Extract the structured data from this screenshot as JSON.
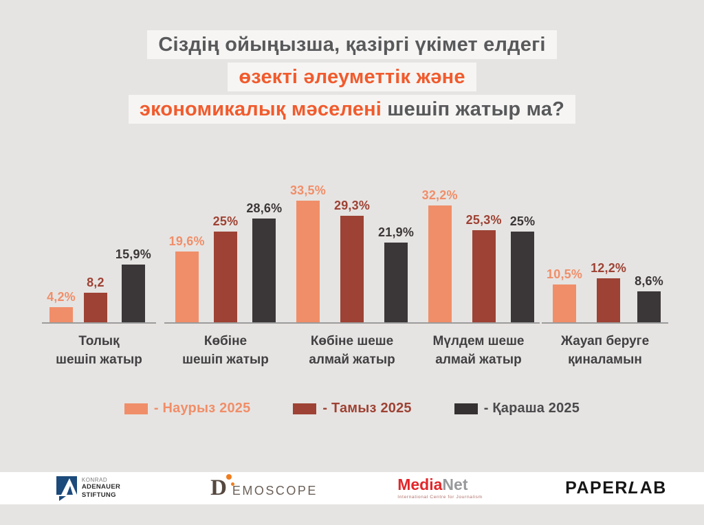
{
  "title": {
    "line1": "Сіздің ойыңызша, қазіргі үкімет елдегі",
    "line2": "өзекті әлеуметтік және",
    "line3_highlight": "экономикалық мәселені",
    "line3_rest": " шешіп жатыр ма?"
  },
  "colors": {
    "background": "#E6E4E2",
    "title_gray": "#58595B",
    "title_orange": "#F15B2D",
    "title_box": "#F6F5F3",
    "series_march": "#F08E69",
    "series_august": "#9D4234",
    "series_november": "#3B3638",
    "axis_line": "#9B9B9B",
    "category_label": "#414042",
    "footer_background": "#FFFFFF"
  },
  "chart_data": {
    "type": "bar",
    "title": "Сіздің ойыңызша, қазіргі үкімет елдегі өзекті әлеуметтік және экономикалық мәселені шешіп жатыр ма?",
    "categories": [
      "Толық шешіп жатыр",
      "Көбіне шешіп жатыр",
      "Көбіне шеше алмай жатыр",
      "Мүлдем шеше алмай жатыр",
      "Жауап беруге қиналамын"
    ],
    "category_lines": [
      [
        "Толық",
        "шешіп жатыр"
      ],
      [
        "Көбіне",
        "шешіп жатыр"
      ],
      [
        "Көбіне шеше",
        "алмай жатыр"
      ],
      [
        "Мүлдем шеше",
        "алмай жатыр"
      ],
      [
        "Жауап беруге",
        "қиналамын"
      ]
    ],
    "series": [
      {
        "name": "Наурыз 2025",
        "color": "#F08E69",
        "values": [
          4.2,
          19.6,
          33.5,
          32.2,
          10.5
        ],
        "labels": [
          "4,2%",
          "19,6%",
          "33,5%",
          "32,2%",
          "10,5%"
        ]
      },
      {
        "name": "Тамыз 2025",
        "color": "#9D4234",
        "values": [
          8.2,
          25,
          29.3,
          25.3,
          12.2
        ],
        "labels": [
          "8,2",
          "25%",
          "29,3%",
          "25,3%",
          "12,2%"
        ]
      },
      {
        "name": "Қараша 2025",
        "color": "#3B3638",
        "values": [
          15.9,
          28.6,
          21.9,
          25,
          8.6
        ],
        "labels": [
          "15,9%",
          "28,6%",
          "21,9%",
          "25%",
          "8,6%"
        ]
      }
    ],
    "ylim": [
      0,
      35
    ],
    "grid": false,
    "legend_position": "bottom",
    "value_label_format": "comma-decimal percent"
  },
  "legend": {
    "items": [
      {
        "label": "- Наурыз 2025",
        "color": "#F08E69"
      },
      {
        "label": "- Тамыз 2025",
        "color": "#9D4234"
      },
      {
        "label": "- Қараша 2025",
        "color": "#4A4A4C",
        "swatch": "#353132"
      }
    ]
  },
  "footer": {
    "kas": {
      "line1": "KONRAD",
      "line2": "ADENAUER",
      "line3": "STIFTUNG",
      "mark_color": "#1C4A7B"
    },
    "demoscope": {
      "d": "D",
      "rest": "EMOSCOPE",
      "dot_color": "#F07D1E"
    },
    "medianet": {
      "part1": "Media",
      "part2": "Net",
      "subtitle": "International Centre for Journalism"
    },
    "paperlab": {
      "part1": "PAPER",
      "part2": "L",
      "part3": "AB"
    }
  }
}
